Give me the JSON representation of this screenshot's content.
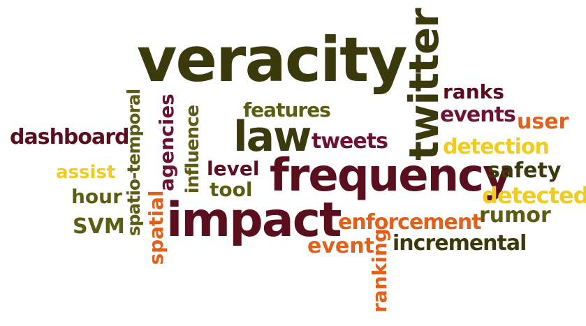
{
  "palette": {
    "olive_dark": "#3a3a0c",
    "olive": "#5c5c12",
    "maroon": "#5a0e1e",
    "wine": "#6e1232",
    "orange": "#e0601c",
    "yellow": "#f0cc1e",
    "background": "#ffffff"
  },
  "words": {
    "veracity": "veracity",
    "twitter": "twitter",
    "frequency": "frequency",
    "impact": "impact",
    "law": "law",
    "features": "features",
    "tweets": "tweets",
    "dashboard": "dashboard",
    "assist": "assist",
    "hour": "hour",
    "svm": "SVM",
    "spatio_temporal": "spatio-temporal",
    "spatial": "spatial",
    "agencies": "agencies",
    "influence": "influence",
    "level": "level",
    "tool": "tool",
    "ranks": "ranks",
    "events": "events",
    "user": "user",
    "detection": "detection",
    "safety": "safety",
    "detected": "detected",
    "rumor": "rumor",
    "enforcement": "enforcement",
    "event": "event",
    "ranking": "ranking",
    "incremental": "incremental"
  }
}
